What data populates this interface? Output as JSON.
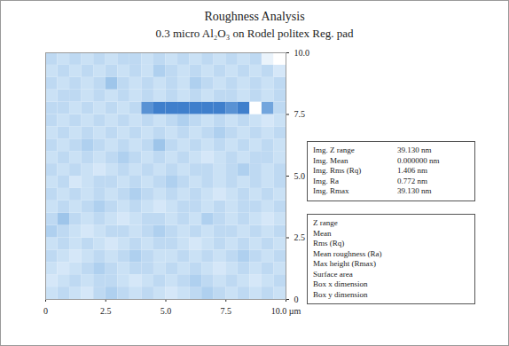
{
  "chart_data": {
    "type": "heatmap",
    "title": "Roughness Analysis",
    "subtitle": "0.3 micro Al₂O₃ on Rodel politex Reg. pad",
    "xlim": [
      0,
      10
    ],
    "ylim": [
      0,
      10
    ],
    "xticks": [
      0,
      2.5,
      {
        "value": 5,
        "label": "5.0"
      },
      7.5,
      {
        "value": 10,
        "label": "10.0 µm"
      }
    ],
    "yticks": [
      0,
      2.5,
      {
        "value": 5,
        "label": "5.0"
      },
      7.5,
      {
        "value": 10,
        "label": "10.0"
      }
    ],
    "z": [
      [
        1,
        0,
        1,
        2,
        0,
        -1,
        0,
        1,
        0,
        1,
        2,
        1,
        0,
        -1,
        0,
        1,
        0,
        1,
        0,
        1
      ],
      [
        2,
        1,
        0,
        1,
        0,
        0,
        1,
        2,
        1,
        0,
        1,
        0,
        -1,
        0,
        1,
        0,
        1,
        2,
        1,
        0
      ],
      [
        1,
        2,
        1,
        0,
        -1,
        0,
        1,
        0,
        0,
        1,
        0,
        1,
        0,
        1,
        2,
        1,
        0,
        1,
        0,
        1
      ],
      [
        0,
        1,
        2,
        1,
        0,
        1,
        0,
        -1,
        0,
        1,
        1,
        0,
        1,
        0,
        1,
        0,
        -1,
        0,
        1,
        0
      ],
      [
        1,
        0,
        1,
        0,
        1,
        2,
        1,
        0,
        1,
        0,
        0,
        1,
        2,
        1,
        0,
        1,
        0,
        1,
        0,
        1
      ],
      [
        -1,
        0,
        1,
        2,
        1,
        0,
        0,
        1,
        0,
        -1,
        0,
        1,
        0,
        1,
        0,
        0,
        1,
        0,
        1,
        0
      ],
      [
        0,
        -2,
        0,
        1,
        0,
        1,
        2,
        1,
        0,
        0,
        1,
        0,
        1,
        -1,
        0,
        1,
        0,
        1,
        2,
        1
      ],
      [
        1,
        0,
        1,
        0,
        -1,
        0,
        1,
        0,
        1,
        2,
        1,
        0,
        0,
        1,
        0,
        1,
        0,
        0,
        1,
        0
      ],
      [
        0,
        1,
        0,
        1,
        0,
        1,
        0,
        -1,
        0,
        1,
        0,
        1,
        0,
        1,
        2,
        1,
        0,
        1,
        0,
        1
      ],
      [
        1,
        0,
        2,
        1,
        0,
        0,
        1,
        0,
        1,
        0,
        -1,
        0,
        1,
        0,
        1,
        0,
        1,
        0,
        1,
        0
      ],
      [
        0,
        1,
        0,
        1,
        2,
        1,
        0,
        1,
        0,
        1,
        0,
        1,
        0,
        0,
        1,
        0,
        -1,
        0,
        1,
        0
      ],
      [
        1,
        0,
        1,
        0,
        1,
        0,
        -1,
        0,
        1,
        0,
        1,
        0,
        1,
        2,
        1,
        0,
        1,
        0,
        0,
        1
      ],
      [
        0,
        1,
        0,
        -1,
        0,
        1,
        0,
        1,
        0,
        -2,
        0,
        1,
        0,
        1,
        0,
        1,
        0,
        1,
        0,
        1
      ],
      [
        1,
        0,
        1,
        0,
        1,
        0,
        1,
        0,
        1,
        0,
        1,
        0,
        1,
        0,
        -1,
        0,
        1,
        0,
        1,
        0
      ],
      [
        0,
        1,
        0,
        1,
        0,
        1,
        0,
        1,
        0,
        1,
        0,
        -1,
        0,
        1,
        0,
        1,
        0,
        1,
        2,
        1
      ],
      [
        0,
        0,
        1,
        0,
        1,
        0,
        1,
        0,
        -5,
        -6,
        -6,
        -6,
        -6,
        -6,
        -6,
        -5,
        -6,
        6,
        -4,
        0
      ],
      [
        1,
        0,
        0,
        1,
        0,
        1,
        0,
        1,
        0,
        1,
        0,
        1,
        0,
        1,
        0,
        0,
        1,
        0,
        1,
        0
      ],
      [
        0,
        1,
        0,
        1,
        0,
        -2,
        0,
        1,
        0,
        1,
        0,
        1,
        -1,
        0,
        1,
        0,
        1,
        0,
        1,
        0
      ],
      [
        1,
        0,
        1,
        0,
        1,
        0,
        1,
        0,
        1,
        -1,
        0,
        1,
        0,
        1,
        0,
        1,
        0,
        1,
        0,
        2
      ],
      [
        0,
        1,
        0,
        1,
        0,
        1,
        0,
        0,
        1,
        0,
        1,
        0,
        1,
        0,
        1,
        0,
        1,
        0,
        4,
        6
      ]
    ],
    "image_statistics": [
      {
        "label": "Img. Z range",
        "value": "39.130 nm"
      },
      {
        "label": "Img. Mean",
        "value": "0.000000 nm"
      },
      {
        "label": "Img. Rms (Rq)",
        "value": "1.406 nm"
      },
      {
        "label": "Img. Ra",
        "value": "0.772 nm"
      },
      {
        "label": "Img. Rmax",
        "value": "39.130 nm"
      }
    ],
    "statistics_fields": [
      "Z range",
      "Mean",
      "Rms (Rq)",
      "Mean roughness (Ra)",
      "Max height (Rmax)",
      "Surface area",
      "Box x dimension",
      "Box y dimension"
    ]
  }
}
